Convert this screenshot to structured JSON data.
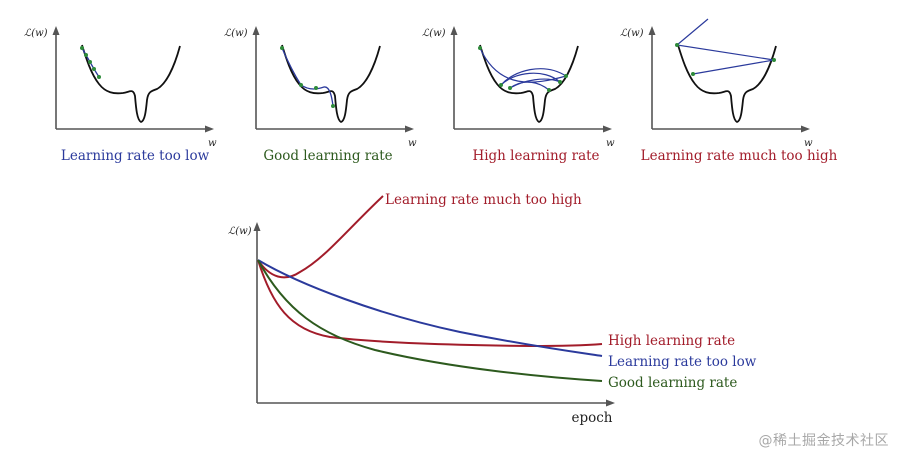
{
  "colors": {
    "too_low": "#2b3a9c",
    "good": "#2d5a1e",
    "high": "#a21c2a",
    "much_too_high": "#a21c2a",
    "axis": "#555555",
    "loss_curve": "#111111",
    "step_point": "#2e8b3a"
  },
  "panels": [
    {
      "ylabel": "ℒ(w)",
      "xlabel": "w",
      "caption": "Learning rate too low"
    },
    {
      "ylabel": "ℒ(w)",
      "xlabel": "w",
      "caption": "Good learning rate"
    },
    {
      "ylabel": "ℒ(w)",
      "xlabel": "w",
      "caption": "High learning rate"
    },
    {
      "ylabel": "ℒ(w)",
      "xlabel": "w",
      "caption": "Learning rate much too high"
    }
  ],
  "main_chart": {
    "ylabel": "ℒ(w)",
    "xlabel": "epoch",
    "series": [
      {
        "name": "Learning rate much too high",
        "color": "#a21c2a"
      },
      {
        "name": "High learning rate",
        "color": "#a21c2a"
      },
      {
        "name": "Learning rate too low",
        "color": "#2b3a9c"
      },
      {
        "name": "Good learning rate",
        "color": "#2d5a1e"
      }
    ]
  },
  "watermark": "@稀土掘金技术社区"
}
